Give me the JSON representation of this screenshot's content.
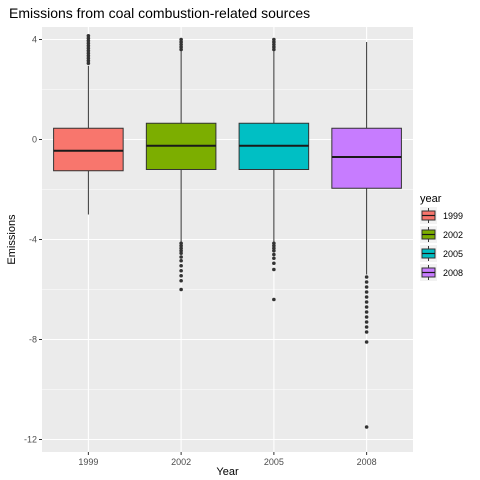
{
  "chart_data": {
    "type": "boxplot",
    "title": "Emissions from coal combustion-related sources",
    "xlabel": "Year",
    "ylabel": "Emissions",
    "ylim": [
      -12.5,
      4.5
    ],
    "yticks": [
      -12,
      -8,
      -4,
      0,
      4
    ],
    "grid": true,
    "legend": {
      "title": "year",
      "position": "right"
    },
    "categories": [
      "1999",
      "2002",
      "2005",
      "2008"
    ],
    "colors": [
      "#F8766D",
      "#7CAE00",
      "#00BFC4",
      "#C77CFF"
    ],
    "boxes": [
      {
        "name": "1999",
        "whisker_low": -3.0,
        "q1": -1.25,
        "median": -0.45,
        "q3": 0.45,
        "whisker_high": 2.95,
        "outliers": [
          3.05,
          3.15,
          3.25,
          3.35,
          3.45,
          3.55,
          3.65,
          3.75,
          3.85,
          3.95,
          4.05,
          4.15
        ]
      },
      {
        "name": "2002",
        "whisker_low": -4.1,
        "q1": -1.2,
        "median": -0.25,
        "q3": 0.65,
        "whisker_high": 3.55,
        "outliers": [
          -4.15,
          -4.25,
          -4.35,
          -4.45,
          -4.55,
          -4.7,
          -4.85,
          -5.05,
          -5.25,
          -5.45,
          -5.65,
          -6.0,
          3.6,
          3.7,
          3.8,
          3.9,
          4.0
        ]
      },
      {
        "name": "2005",
        "whisker_low": -4.1,
        "q1": -1.2,
        "median": -0.25,
        "q3": 0.65,
        "whisker_high": 3.55,
        "outliers": [
          -4.15,
          -4.25,
          -4.35,
          -4.45,
          -4.6,
          -4.75,
          -4.95,
          -5.2,
          -6.4,
          3.6,
          3.7,
          3.8,
          3.9,
          4.0
        ]
      },
      {
        "name": "2008",
        "whisker_low": -5.4,
        "q1": -1.95,
        "median": -0.7,
        "q3": 0.45,
        "whisker_high": 3.9,
        "outliers": [
          -5.5,
          -5.7,
          -5.9,
          -6.1,
          -6.3,
          -6.5,
          -6.7,
          -6.9,
          -7.1,
          -7.3,
          -7.5,
          -7.7,
          -8.1,
          -11.5
        ]
      }
    ]
  }
}
